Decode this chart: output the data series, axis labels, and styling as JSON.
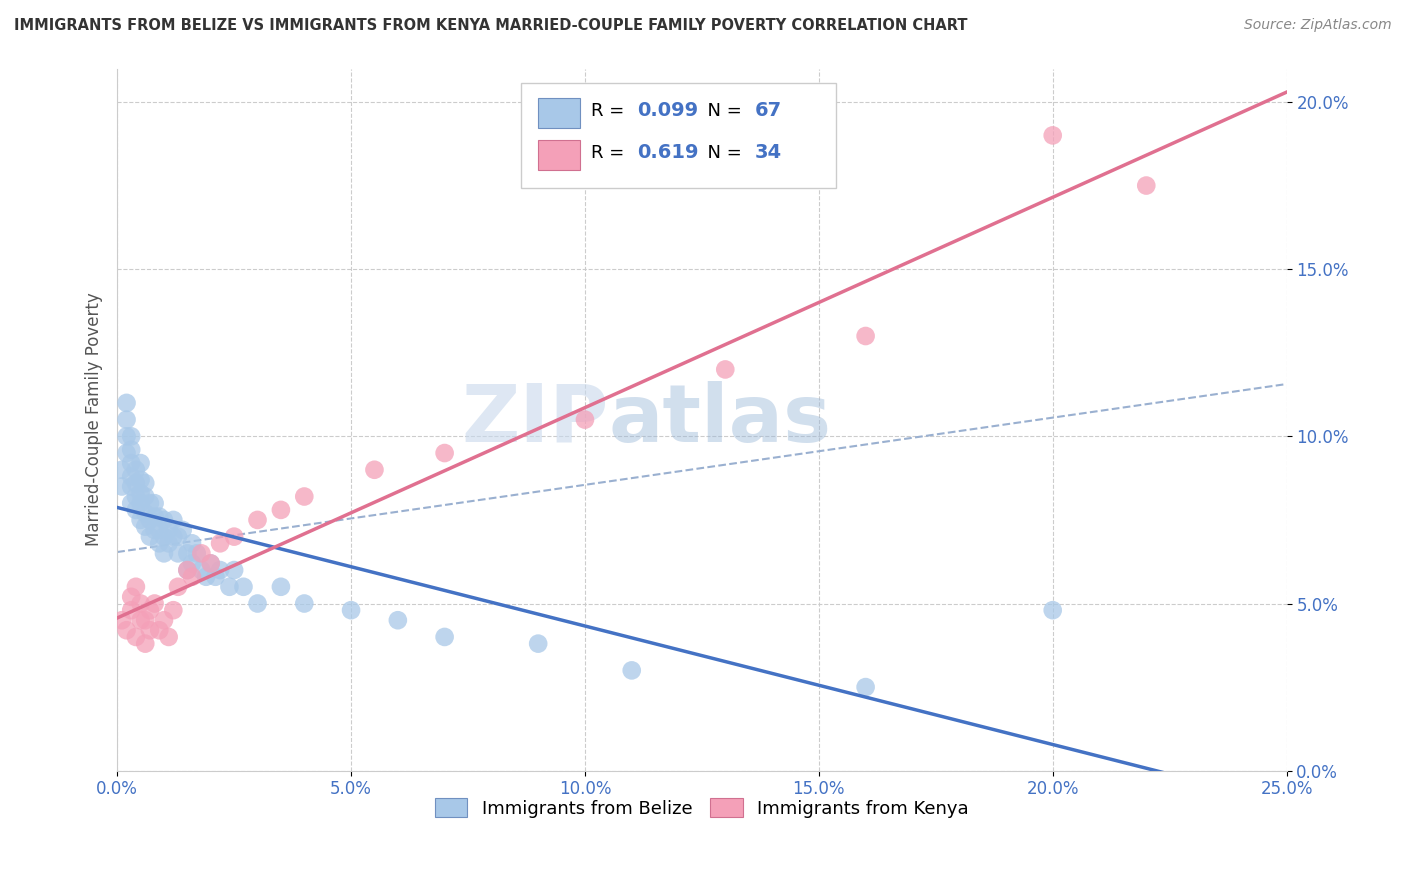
{
  "title": "IMMIGRANTS FROM BELIZE VS IMMIGRANTS FROM KENYA MARRIED-COUPLE FAMILY POVERTY CORRELATION CHART",
  "source": "Source: ZipAtlas.com",
  "ylabel": "Married-Couple Family Poverty",
  "xlim": [
    0.0,
    0.25
  ],
  "ylim": [
    0.0,
    0.21
  ],
  "xticks": [
    0.0,
    0.05,
    0.1,
    0.15,
    0.2,
    0.25
  ],
  "yticks": [
    0.0,
    0.05,
    0.1,
    0.15,
    0.2
  ],
  "xticklabels": [
    "0.0%",
    "5.0%",
    "10.0%",
    "15.0%",
    "20.0%",
    "25.0%"
  ],
  "yticklabels": [
    "0.0%",
    "5.0%",
    "10.0%",
    "15.0%",
    "20.0%"
  ],
  "belize_color": "#a8c8e8",
  "kenya_color": "#f4a0b8",
  "belize_line_color": "#4472c4",
  "kenya_line_color": "#e07090",
  "trend_line_color": "#9ab0d0",
  "R_belize": 0.099,
  "N_belize": 67,
  "R_kenya": 0.619,
  "N_kenya": 34,
  "legend_label_belize": "Immigrants from Belize",
  "legend_label_kenya": "Immigrants from Kenya",
  "watermark_zip": "ZIP",
  "watermark_atlas": "atlas",
  "belize_x": [
    0.001,
    0.001,
    0.002,
    0.002,
    0.002,
    0.002,
    0.003,
    0.003,
    0.003,
    0.003,
    0.003,
    0.003,
    0.004,
    0.004,
    0.004,
    0.004,
    0.005,
    0.005,
    0.005,
    0.005,
    0.005,
    0.006,
    0.006,
    0.006,
    0.006,
    0.007,
    0.007,
    0.007,
    0.008,
    0.008,
    0.008,
    0.009,
    0.009,
    0.009,
    0.01,
    0.01,
    0.01,
    0.011,
    0.011,
    0.012,
    0.012,
    0.013,
    0.013,
    0.014,
    0.015,
    0.015,
    0.016,
    0.016,
    0.017,
    0.018,
    0.019,
    0.02,
    0.021,
    0.022,
    0.024,
    0.025,
    0.027,
    0.03,
    0.035,
    0.04,
    0.05,
    0.06,
    0.07,
    0.09,
    0.11,
    0.16,
    0.2
  ],
  "belize_y": [
    0.085,
    0.09,
    0.095,
    0.1,
    0.105,
    0.11,
    0.08,
    0.085,
    0.088,
    0.092,
    0.096,
    0.1,
    0.078,
    0.082,
    0.086,
    0.09,
    0.075,
    0.08,
    0.083,
    0.087,
    0.092,
    0.073,
    0.077,
    0.082,
    0.086,
    0.07,
    0.075,
    0.08,
    0.072,
    0.076,
    0.08,
    0.068,
    0.072,
    0.076,
    0.065,
    0.07,
    0.075,
    0.068,
    0.072,
    0.07,
    0.075,
    0.065,
    0.07,
    0.072,
    0.06,
    0.065,
    0.062,
    0.068,
    0.065,
    0.06,
    0.058,
    0.062,
    0.058,
    0.06,
    0.055,
    0.06,
    0.055,
    0.05,
    0.055,
    0.05,
    0.048,
    0.045,
    0.04,
    0.038,
    0.03,
    0.025,
    0.048
  ],
  "kenya_x": [
    0.001,
    0.002,
    0.003,
    0.003,
    0.004,
    0.004,
    0.005,
    0.005,
    0.006,
    0.006,
    0.007,
    0.007,
    0.008,
    0.009,
    0.01,
    0.011,
    0.012,
    0.013,
    0.015,
    0.016,
    0.018,
    0.02,
    0.022,
    0.025,
    0.03,
    0.035,
    0.04,
    0.055,
    0.07,
    0.1,
    0.13,
    0.16,
    0.2,
    0.22
  ],
  "kenya_y": [
    0.045,
    0.042,
    0.048,
    0.052,
    0.04,
    0.055,
    0.045,
    0.05,
    0.038,
    0.045,
    0.042,
    0.048,
    0.05,
    0.042,
    0.045,
    0.04,
    0.048,
    0.055,
    0.06,
    0.058,
    0.065,
    0.062,
    0.068,
    0.07,
    0.075,
    0.078,
    0.082,
    0.09,
    0.095,
    0.105,
    0.12,
    0.13,
    0.19,
    0.175
  ]
}
